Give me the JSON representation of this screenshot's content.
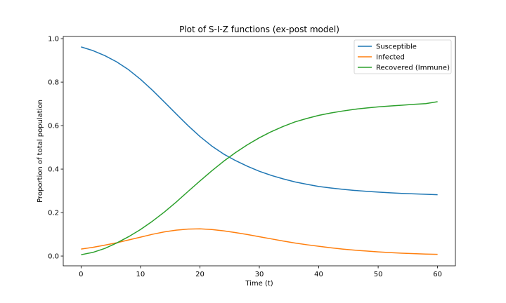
{
  "chart_data": {
    "type": "line",
    "title": "Plot of S-I-Z functions (ex-post model)",
    "xlabel": "Time (t)",
    "ylabel": "Proportion of total population",
    "xlim": [
      -3,
      63
    ],
    "ylim": [
      -0.045,
      1.01
    ],
    "xticks": [
      0,
      10,
      20,
      30,
      40,
      50,
      60
    ],
    "yticks": [
      0.0,
      0.2,
      0.4,
      0.6,
      0.8,
      1.0
    ],
    "xtick_labels": [
      "0",
      "10",
      "20",
      "30",
      "40",
      "50",
      "60"
    ],
    "ytick_labels": [
      "0.0",
      "0.2",
      "0.4",
      "0.6",
      "0.8",
      "1.0"
    ],
    "grid": false,
    "legend_position": "top-right",
    "x": [
      0,
      2,
      4,
      6,
      8,
      10,
      12,
      14,
      16,
      18,
      20,
      22,
      24,
      26,
      28,
      30,
      32,
      34,
      36,
      38,
      40,
      42,
      44,
      46,
      48,
      50,
      52,
      54,
      56,
      58,
      60
    ],
    "series": [
      {
        "name": "Susceptible",
        "color": "#1f77b4",
        "values": [
          0.962,
          0.945,
          0.922,
          0.893,
          0.857,
          0.813,
          0.763,
          0.709,
          0.654,
          0.6,
          0.55,
          0.506,
          0.469,
          0.439,
          0.413,
          0.39,
          0.371,
          0.355,
          0.341,
          0.33,
          0.32,
          0.313,
          0.307,
          0.302,
          0.298,
          0.294,
          0.291,
          0.288,
          0.286,
          0.284,
          0.282
        ]
      },
      {
        "name": "Infected",
        "color": "#ff7f0e",
        "values": [
          0.032,
          0.04,
          0.05,
          0.061,
          0.074,
          0.087,
          0.1,
          0.111,
          0.119,
          0.124,
          0.125,
          0.122,
          0.116,
          0.108,
          0.099,
          0.089,
          0.079,
          0.069,
          0.06,
          0.052,
          0.045,
          0.038,
          0.032,
          0.027,
          0.023,
          0.019,
          0.016,
          0.013,
          0.011,
          0.009,
          0.008
        ]
      },
      {
        "name": "Recovered (Immune)",
        "color": "#2ca02c",
        "values": [
          0.006,
          0.017,
          0.035,
          0.06,
          0.089,
          0.122,
          0.16,
          0.202,
          0.248,
          0.297,
          0.345,
          0.392,
          0.436,
          0.476,
          0.512,
          0.544,
          0.572,
          0.596,
          0.617,
          0.633,
          0.647,
          0.658,
          0.667,
          0.675,
          0.681,
          0.686,
          0.69,
          0.694,
          0.698,
          0.701,
          0.71
        ]
      }
    ]
  }
}
